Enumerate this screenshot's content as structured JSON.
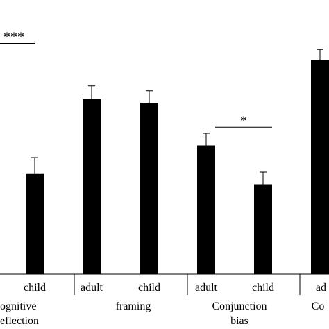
{
  "chart_data": {
    "type": "bar",
    "title": "",
    "xlabel": "",
    "ylabel": "",
    "ylim": [
      0,
      100
    ],
    "grid": false,
    "legend": "none",
    "bar_color": "#000000",
    "bars": [
      {
        "group": "Cognitive reflection",
        "category": "child",
        "value": 41.5,
        "error": 6.5
      },
      {
        "group": "framing",
        "category": "adult",
        "value": 72,
        "error": 5.5
      },
      {
        "group": "framing",
        "category": "child",
        "value": 70.5,
        "error": 5
      },
      {
        "group": "Conjunction bias",
        "category": "adult",
        "value": 53,
        "error": 5
      },
      {
        "group": "Conjunction bias",
        "category": "child",
        "value": 37,
        "error": 5
      },
      {
        "group": "Co",
        "category": "ad",
        "value": 88,
        "error": 4.5
      }
    ],
    "groups": [
      {
        "lines": [
          "ognitive",
          "eflection"
        ]
      },
      {
        "lines": [
          "framing"
        ]
      },
      {
        "lines": [
          "Conjunction",
          "bias"
        ]
      },
      {
        "lines": [
          "Co"
        ]
      }
    ],
    "significance": [
      {
        "label": "***",
        "value": 95
      },
      {
        "label": "*",
        "value": 60.5
      }
    ]
  }
}
